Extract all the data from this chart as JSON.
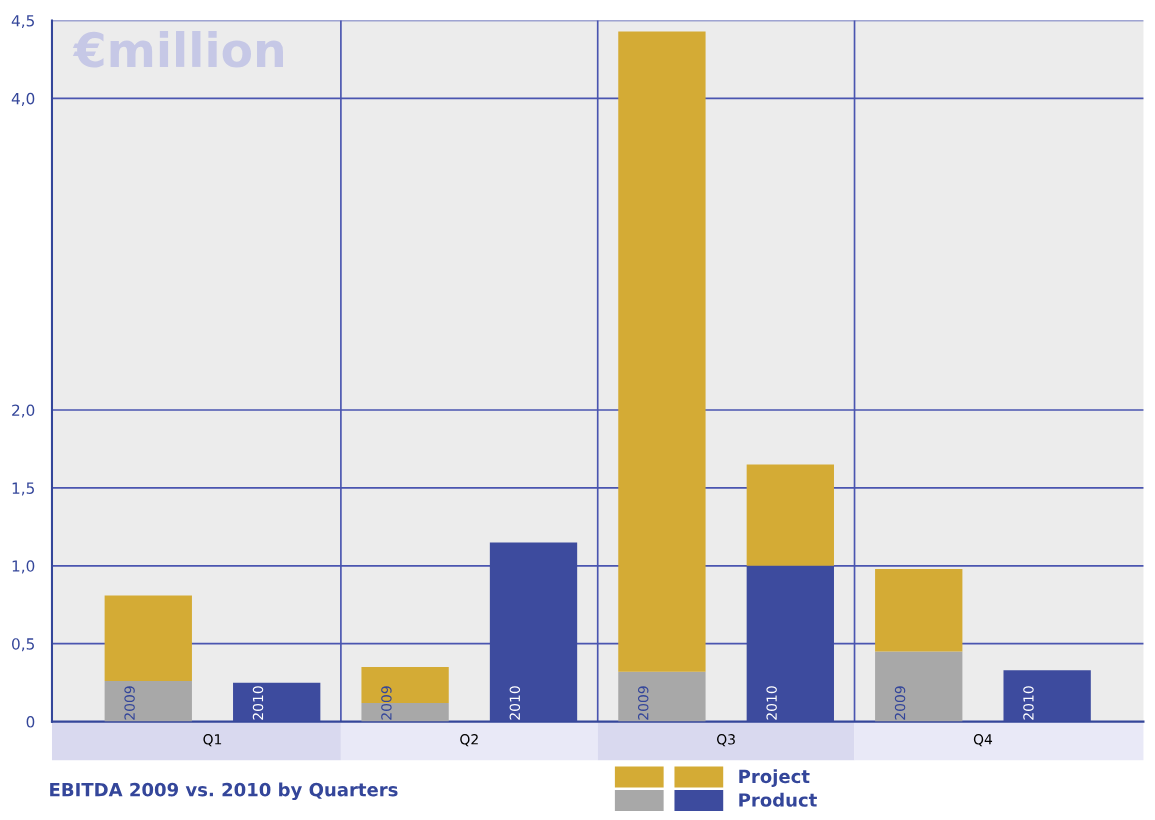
{
  "chart_data": {
    "type": "bar",
    "stacked": true,
    "title": "EBITDA 2009 vs. 2010 by Quarters",
    "ylabel": "€million",
    "categories": [
      "2009",
      "2010",
      "2009",
      "2010",
      "2009",
      "2010",
      "2009",
      "2010"
    ],
    "series": [
      {
        "name": "Product",
        "colors": [
          "#a8a8a8",
          "#3d4b9e",
          "#a8a8a8",
          "#3d4b9e",
          "#a8a8a8",
          "#3d4b9e",
          "#a8a8a8",
          "#3d4b9e"
        ],
        "values": [
          0.26,
          0.25,
          0.12,
          1.15,
          0.32,
          1.0,
          0.45,
          0.33
        ]
      },
      {
        "name": "Project",
        "color": "#d4ab35",
        "values": [
          0.55,
          0,
          0.23,
          0,
          4.11,
          0.65,
          0.53,
          0
        ]
      }
    ],
    "annotations": [
      "Q1",
      "Q2",
      "Q3",
      "Q4"
    ],
    "ylim": [
      0,
      4.5
    ],
    "yticks": [
      0,
      {
        "value": 0.5,
        "label": "0,5"
      },
      {
        "value": 1.0,
        "label": "1,0"
      },
      {
        "value": 1.5,
        "label": "1,5"
      },
      {
        "value": 2.0,
        "label": "2,0"
      },
      {
        "value": 4.0,
        "label": "4,0"
      },
      {
        "value": 4.5,
        "label": "4,5"
      }
    ],
    "grid": true,
    "legend": "bottom"
  }
}
